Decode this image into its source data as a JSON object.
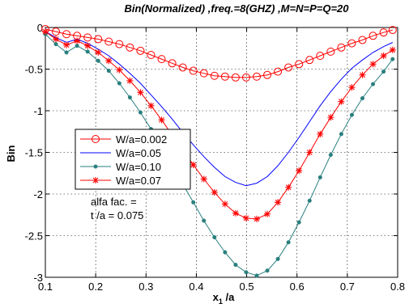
{
  "chart_data": {
    "type": "line",
    "title": "Bin(Normalized) ,freq.=8(GHZ) ,M=N=P=Q=20",
    "xlabel_main": "x",
    "xlabel_sub": "1",
    "xlabel_tail": " /a",
    "ylabel": "Bin",
    "xlim": [
      0.1,
      0.8
    ],
    "ylim": [
      -3,
      0
    ],
    "xticks": [
      0.1,
      0.2,
      0.3,
      0.4,
      0.5,
      0.6,
      0.7,
      0.8
    ],
    "xtick_labels": [
      "0.1",
      "0.2",
      "0.3",
      "0.4",
      "0.5",
      "0.6",
      "0.7",
      "0.8"
    ],
    "yticks": [
      0,
      -0.5,
      -1,
      -1.5,
      -2,
      -2.5,
      -3
    ],
    "ytick_labels": [
      "0",
      "-0.5",
      "-1",
      "-1.5",
      "-2",
      "-2.5",
      "-3"
    ],
    "grid": true,
    "legend_position": "center-left",
    "annotation_line1": "alfa fac. =",
    "annotation_line2": "t /a = 0.075",
    "series": [
      {
        "name": "W/a=0.002",
        "color": "#ff0000",
        "marker": "circle",
        "x": [
          0.1,
          0.121,
          0.142,
          0.163,
          0.184,
          0.205,
          0.226,
          0.247,
          0.268,
          0.289,
          0.31,
          0.331,
          0.352,
          0.373,
          0.394,
          0.415,
          0.436,
          0.457,
          0.478,
          0.499,
          0.52,
          0.541,
          0.562,
          0.583,
          0.604,
          0.625,
          0.646,
          0.667,
          0.688,
          0.709,
          0.73,
          0.751,
          0.772,
          0.79
        ],
        "y": [
          -0.02,
          -0.05,
          -0.08,
          -0.1,
          -0.12,
          -0.14,
          -0.17,
          -0.2,
          -0.24,
          -0.28,
          -0.33,
          -0.38,
          -0.43,
          -0.48,
          -0.52,
          -0.55,
          -0.58,
          -0.59,
          -0.6,
          -0.6,
          -0.59,
          -0.57,
          -0.53,
          -0.48,
          -0.44,
          -0.39,
          -0.34,
          -0.29,
          -0.24,
          -0.19,
          -0.15,
          -0.1,
          -0.06,
          -0.03
        ]
      },
      {
        "name": "W/a=0.05",
        "color": "#0000ff",
        "marker": "none",
        "x": [
          0.1,
          0.121,
          0.142,
          0.163,
          0.184,
          0.205,
          0.226,
          0.247,
          0.268,
          0.289,
          0.31,
          0.331,
          0.352,
          0.373,
          0.394,
          0.415,
          0.436,
          0.457,
          0.478,
          0.499,
          0.52,
          0.541,
          0.562,
          0.583,
          0.604,
          0.625,
          0.646,
          0.667,
          0.688,
          0.709,
          0.73,
          0.751,
          0.772,
          0.79
        ],
        "y": [
          -0.05,
          -0.12,
          -0.18,
          -0.14,
          -0.19,
          -0.26,
          -0.34,
          -0.44,
          -0.55,
          -0.67,
          -0.81,
          -0.95,
          -1.1,
          -1.26,
          -1.41,
          -1.55,
          -1.68,
          -1.79,
          -1.86,
          -1.9,
          -1.87,
          -1.79,
          -1.66,
          -1.5,
          -1.32,
          -1.13,
          -0.94,
          -0.77,
          -0.62,
          -0.49,
          -0.39,
          -0.3,
          -0.23,
          -0.18
        ]
      },
      {
        "name": "W/a=0.10",
        "color": "#2a7f7f",
        "marker": "dot",
        "x": [
          0.1,
          0.121,
          0.142,
          0.163,
          0.184,
          0.205,
          0.226,
          0.247,
          0.268,
          0.289,
          0.31,
          0.331,
          0.352,
          0.373,
          0.394,
          0.415,
          0.436,
          0.457,
          0.478,
          0.499,
          0.52,
          0.541,
          0.562,
          0.583,
          0.604,
          0.625,
          0.646,
          0.667,
          0.688,
          0.709,
          0.73,
          0.751,
          0.772,
          0.79
        ],
        "y": [
          -0.08,
          -0.2,
          -0.3,
          -0.22,
          -0.29,
          -0.4,
          -0.52,
          -0.67,
          -0.84,
          -1.02,
          -1.22,
          -1.43,
          -1.65,
          -1.88,
          -2.1,
          -2.32,
          -2.52,
          -2.7,
          -2.85,
          -2.94,
          -2.98,
          -2.92,
          -2.78,
          -2.58,
          -2.34,
          -2.08,
          -1.8,
          -1.53,
          -1.28,
          -1.05,
          -0.85,
          -0.68,
          -0.53,
          -0.38
        ]
      },
      {
        "name": "W/a=0.07",
        "color": "#ff0000",
        "marker": "star",
        "x": [
          0.1,
          0.121,
          0.142,
          0.163,
          0.184,
          0.205,
          0.226,
          0.247,
          0.268,
          0.289,
          0.31,
          0.331,
          0.352,
          0.373,
          0.394,
          0.415,
          0.436,
          0.457,
          0.478,
          0.499,
          0.52,
          0.541,
          0.562,
          0.583,
          0.604,
          0.625,
          0.646,
          0.667,
          0.688,
          0.709,
          0.73,
          0.751,
          0.772,
          0.79
        ],
        "y": [
          -0.05,
          -0.14,
          -0.21,
          -0.16,
          -0.22,
          -0.3,
          -0.4,
          -0.51,
          -0.64,
          -0.78,
          -0.94,
          -1.11,
          -1.29,
          -1.47,
          -1.65,
          -1.82,
          -1.98,
          -2.12,
          -2.23,
          -2.29,
          -2.3,
          -2.24,
          -2.1,
          -1.92,
          -1.72,
          -1.5,
          -1.28,
          -1.08,
          -0.89,
          -0.72,
          -0.57,
          -0.44,
          -0.34,
          -0.27
        ]
      }
    ]
  }
}
